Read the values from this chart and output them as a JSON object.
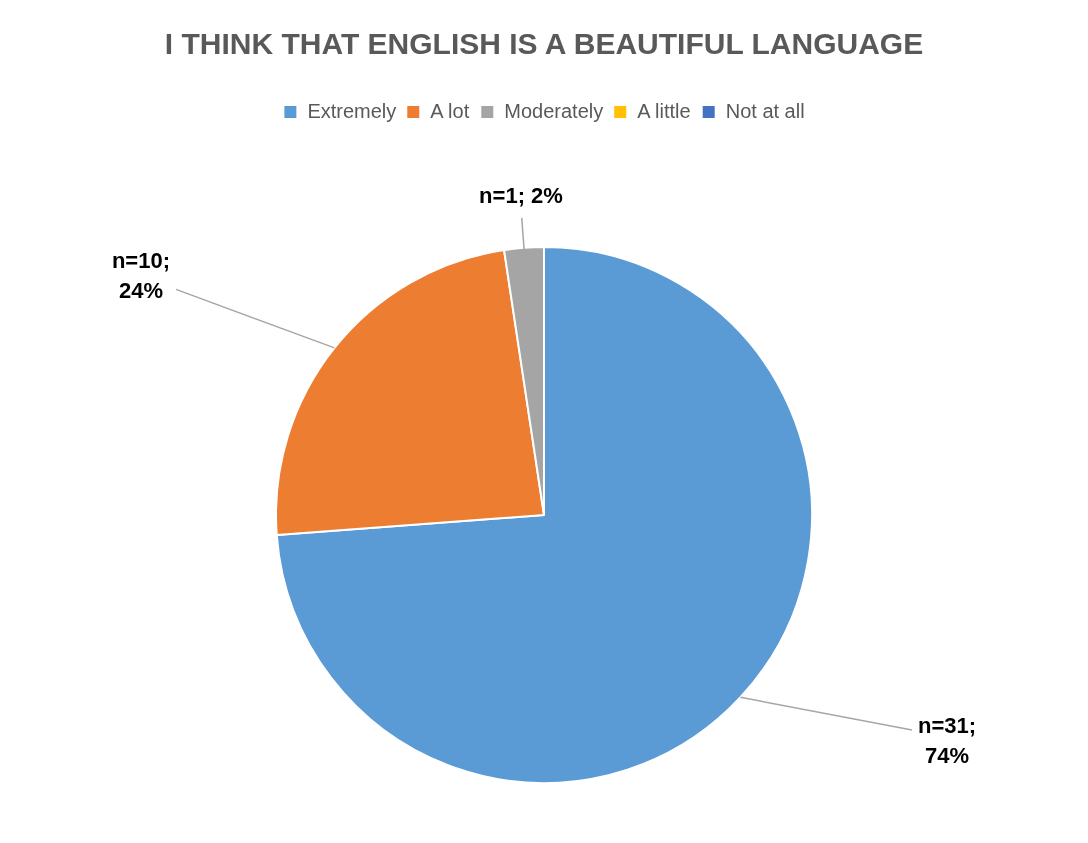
{
  "chart_data": {
    "type": "pie",
    "title": "I THINK THAT ENGLISH IS A BEAUTIFUL LANGUAGE",
    "categories": [
      "Extremely",
      "A lot",
      "Moderately",
      "A little",
      "Not at all"
    ],
    "values": [
      31,
      10,
      1,
      0,
      0
    ],
    "colors": [
      "#5b9bd5",
      "#ed7d31",
      "#a5a5a5",
      "#ffc000",
      "#4472c4"
    ],
    "value_labels": [
      "n=31; 74%",
      "n=10; 24%",
      "n=1; 2%",
      null,
      null
    ],
    "legend": "top"
  }
}
